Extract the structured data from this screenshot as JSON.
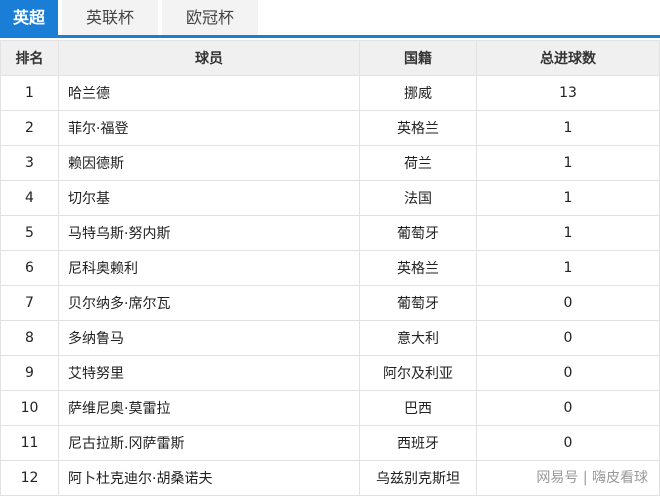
{
  "tabs": [
    {
      "label": "英超",
      "active": true
    },
    {
      "label": "英联杯",
      "active": false
    },
    {
      "label": "欧冠杯",
      "active": false
    }
  ],
  "columns": [
    "排名",
    "球员",
    "国籍",
    "总进球数"
  ],
  "rows": [
    [
      "1",
      "哈兰德",
      "挪威",
      "13"
    ],
    [
      "2",
      "菲尔·福登",
      "英格兰",
      "1"
    ],
    [
      "3",
      "赖因德斯",
      "荷兰",
      "1"
    ],
    [
      "4",
      "切尔基",
      "法国",
      "1"
    ],
    [
      "5",
      "马特乌斯·努内斯",
      "葡萄牙",
      "1"
    ],
    [
      "6",
      "尼科奥赖利",
      "英格兰",
      "1"
    ],
    [
      "7",
      "贝尔纳多·席尔瓦",
      "葡萄牙",
      "0"
    ],
    [
      "8",
      "多纳鲁马",
      "意大利",
      "0"
    ],
    [
      "9",
      "艾特努里",
      "阿尔及利亚",
      "0"
    ],
    [
      "10",
      "萨维尼奥·莫雷拉",
      "巴西",
      "0"
    ],
    [
      "11",
      "尼古拉斯.冈萨雷斯",
      "西班牙",
      "0"
    ],
    [
      "12",
      "阿卜杜克迪尔·胡桑诺夫",
      "乌兹别克斯坦",
      ""
    ]
  ],
  "watermark": "网易号 | 嗨皮看球",
  "accent": "#1a7ed6"
}
